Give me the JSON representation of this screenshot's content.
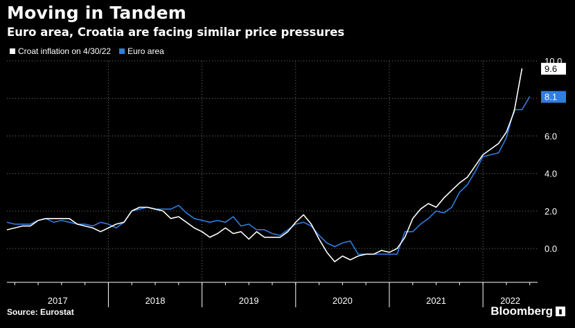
{
  "header": {
    "title": "Moving in Tandem",
    "subtitle": "Euro area, Croatia are facing similar price pressures"
  },
  "footer": {
    "source": "Source: Eurostat",
    "brand": "Bloomberg"
  },
  "colors": {
    "croatia": "#ffffff",
    "euro": "#2f7de1",
    "grid": "#7a7a7a",
    "background": "#000000"
  },
  "chart_data": {
    "type": "line",
    "title": "Moving in Tandem",
    "subtitle": "Euro area, Croatia are facing similar price pressures",
    "ylim": [
      -1.8,
      10.0
    ],
    "yticks": [
      0.0,
      2.0,
      4.0,
      6.0,
      8.0,
      10.0
    ],
    "ytick_labels": [
      "0.0",
      "2.0",
      "4.0",
      "6.0",
      "8.0",
      "10.0"
    ],
    "xlim": [
      "2016-12",
      "2022-05"
    ],
    "xtick_labels": [
      "2017",
      "2018",
      "2019",
      "2020",
      "2021",
      "2022"
    ],
    "grid": true,
    "legend_position": "top-left",
    "series": [
      {
        "name": "Croat inflation on 4/30/22",
        "color": "#ffffff",
        "end_label": "9.6",
        "points": [
          [
            "2016-12",
            1.0
          ],
          [
            "2017-01",
            1.1
          ],
          [
            "2017-02",
            1.2
          ],
          [
            "2017-03",
            1.2
          ],
          [
            "2017-04",
            1.5
          ],
          [
            "2017-05",
            1.6
          ],
          [
            "2017-06",
            1.6
          ],
          [
            "2017-07",
            1.6
          ],
          [
            "2017-08",
            1.6
          ],
          [
            "2017-09",
            1.3
          ],
          [
            "2017-10",
            1.2
          ],
          [
            "2017-11",
            1.1
          ],
          [
            "2017-12",
            0.9
          ],
          [
            "2018-01",
            1.1
          ],
          [
            "2018-02",
            1.3
          ],
          [
            "2018-03",
            1.4
          ],
          [
            "2018-04",
            2.0
          ],
          [
            "2018-05",
            2.2
          ],
          [
            "2018-06",
            2.2
          ],
          [
            "2018-07",
            2.1
          ],
          [
            "2018-08",
            2.0
          ],
          [
            "2018-09",
            1.6
          ],
          [
            "2018-10",
            1.7
          ],
          [
            "2018-11",
            1.4
          ],
          [
            "2018-12",
            1.1
          ],
          [
            "2019-01",
            0.9
          ],
          [
            "2019-02",
            0.6
          ],
          [
            "2019-03",
            0.8
          ],
          [
            "2019-04",
            1.1
          ],
          [
            "2019-05",
            0.8
          ],
          [
            "2019-06",
            0.9
          ],
          [
            "2019-07",
            0.5
          ],
          [
            "2019-08",
            0.9
          ],
          [
            "2019-09",
            0.6
          ],
          [
            "2019-10",
            0.6
          ],
          [
            "2019-11",
            0.6
          ],
          [
            "2019-12",
            0.9
          ],
          [
            "2020-01",
            1.4
          ],
          [
            "2020-02",
            1.8
          ],
          [
            "2020-03",
            1.3
          ],
          [
            "2020-04",
            0.5
          ],
          [
            "2020-05",
            -0.2
          ],
          [
            "2020-06",
            -0.7
          ],
          [
            "2020-07",
            -0.4
          ],
          [
            "2020-08",
            -0.6
          ],
          [
            "2020-09",
            -0.4
          ],
          [
            "2020-10",
            -0.3
          ],
          [
            "2020-11",
            -0.3
          ],
          [
            "2020-12",
            -0.1
          ],
          [
            "2021-01",
            -0.2
          ],
          [
            "2021-02",
            0.0
          ],
          [
            "2021-03",
            0.6
          ],
          [
            "2021-04",
            1.6
          ],
          [
            "2021-05",
            2.1
          ],
          [
            "2021-06",
            2.4
          ],
          [
            "2021-07",
            2.2
          ],
          [
            "2021-08",
            2.7
          ],
          [
            "2021-09",
            3.1
          ],
          [
            "2021-10",
            3.5
          ],
          [
            "2021-11",
            3.8
          ],
          [
            "2021-12",
            4.4
          ],
          [
            "2022-01",
            5.0
          ],
          [
            "2022-02",
            5.3
          ],
          [
            "2022-03",
            5.6
          ],
          [
            "2022-04",
            6.2
          ],
          [
            "2022-05",
            7.3
          ],
          [
            "2022-06",
            9.6
          ]
        ]
      },
      {
        "name": "Euro area",
        "color": "#2f7de1",
        "end_label": "8.1",
        "points": [
          [
            "2016-12",
            1.4
          ],
          [
            "2017-01",
            1.3
          ],
          [
            "2017-02",
            1.3
          ],
          [
            "2017-03",
            1.3
          ],
          [
            "2017-04",
            1.5
          ],
          [
            "2017-05",
            1.6
          ],
          [
            "2017-06",
            1.4
          ],
          [
            "2017-07",
            1.5
          ],
          [
            "2017-08",
            1.4
          ],
          [
            "2017-09",
            1.3
          ],
          [
            "2017-10",
            1.3
          ],
          [
            "2017-11",
            1.2
          ],
          [
            "2017-12",
            1.4
          ],
          [
            "2018-01",
            1.3
          ],
          [
            "2018-02",
            1.1
          ],
          [
            "2018-03",
            1.4
          ],
          [
            "2018-04",
            2.0
          ],
          [
            "2018-05",
            2.1
          ],
          [
            "2018-06",
            2.2
          ],
          [
            "2018-07",
            2.1
          ],
          [
            "2018-08",
            2.1
          ],
          [
            "2018-09",
            2.1
          ],
          [
            "2018-10",
            2.3
          ],
          [
            "2018-11",
            1.9
          ],
          [
            "2018-12",
            1.6
          ],
          [
            "2019-01",
            1.5
          ],
          [
            "2019-02",
            1.4
          ],
          [
            "2019-03",
            1.5
          ],
          [
            "2019-04",
            1.4
          ],
          [
            "2019-05",
            1.7
          ],
          [
            "2019-06",
            1.2
          ],
          [
            "2019-07",
            1.3
          ],
          [
            "2019-08",
            1.0
          ],
          [
            "2019-09",
            1.0
          ],
          [
            "2019-10",
            0.8
          ],
          [
            "2019-11",
            0.7
          ],
          [
            "2019-12",
            1.0
          ],
          [
            "2020-01",
            1.3
          ],
          [
            "2020-02",
            1.4
          ],
          [
            "2020-03",
            1.2
          ],
          [
            "2020-04",
            0.7
          ],
          [
            "2020-05",
            0.3
          ],
          [
            "2020-06",
            0.1
          ],
          [
            "2020-07",
            0.3
          ],
          [
            "2020-08",
            0.4
          ],
          [
            "2020-09",
            -0.3
          ],
          [
            "2020-10",
            -0.3
          ],
          [
            "2020-11",
            -0.3
          ],
          [
            "2020-12",
            -0.3
          ],
          [
            "2021-01",
            -0.3
          ],
          [
            "2021-02",
            -0.3
          ],
          [
            "2021-03",
            0.9
          ],
          [
            "2021-04",
            0.9
          ],
          [
            "2021-05",
            1.3
          ],
          [
            "2021-06",
            1.6
          ],
          [
            "2021-07",
            2.0
          ],
          [
            "2021-08",
            1.9
          ],
          [
            "2021-09",
            2.2
          ],
          [
            "2021-10",
            3.0
          ],
          [
            "2021-11",
            3.4
          ],
          [
            "2021-12",
            4.1
          ],
          [
            "2022-01",
            4.9
          ],
          [
            "2022-02",
            5.0
          ],
          [
            "2022-03",
            5.1
          ],
          [
            "2022-04",
            5.9
          ],
          [
            "2022-05",
            7.4
          ],
          [
            "2022-06",
            7.4
          ],
          [
            "2022-07",
            8.1
          ]
        ]
      }
    ]
  }
}
